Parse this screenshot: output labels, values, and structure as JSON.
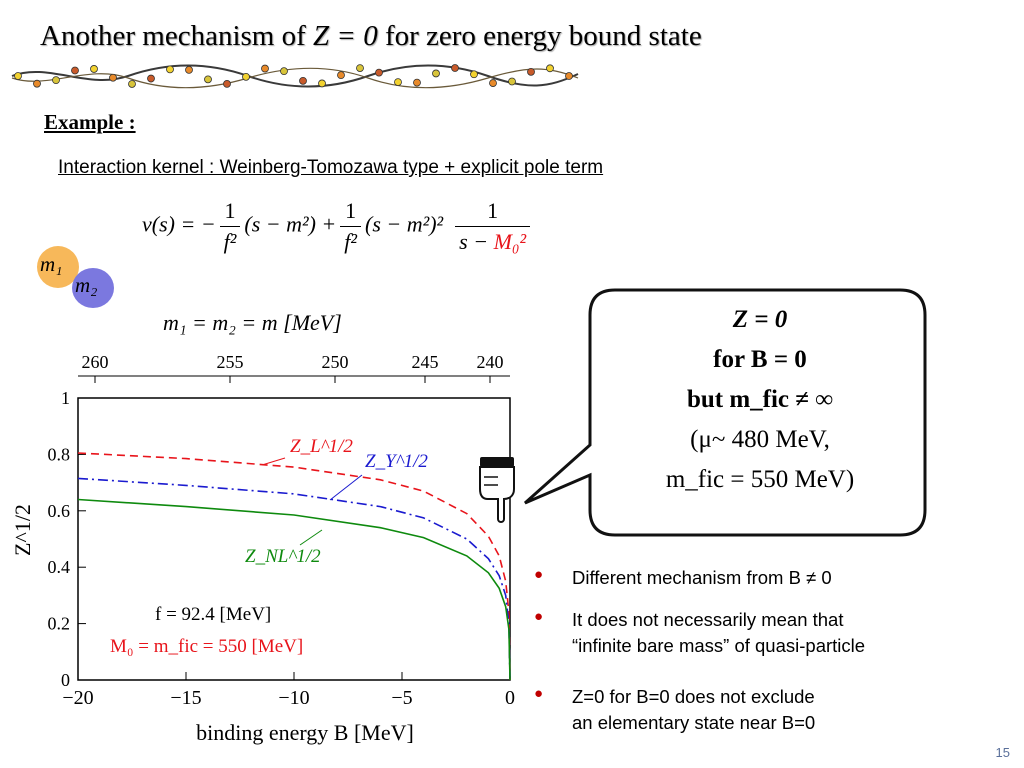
{
  "title": {
    "prefix": "Another mechanism of ",
    "math": "Z = 0",
    "suffix": " for zero energy bound state"
  },
  "example_label": "Example :",
  "kernel_text": "Interaction kernel : Weinberg-Tomozawa type + explicit pole term",
  "equation_v": {
    "lhs": "v(s) = −",
    "frac1_num": "1",
    "frac1_den": "f²",
    "mid1": "(s − m²) +",
    "frac2_num": "1",
    "frac2_den": "f²",
    "mid2": "(s − m²)²",
    "frac3_num": "1",
    "frac3_den_prefix": "s − ",
    "frac3_den_red": "M₀²"
  },
  "particles": {
    "m1": "m₁",
    "m2": "m₂"
  },
  "mass_equation": "m₁ = m₂ = m [MeV]",
  "callout": {
    "line1": "Z = 0",
    "line2": "for B = 0",
    "line3": "but m_fic ≠ ∞",
    "line4": "(μ~ 480 MeV,",
    "line5": "m_fic = 550 MeV)"
  },
  "bullets": [
    {
      "line1": "Different mechanism from B ≠ 0"
    },
    {
      "line1": "It does not necessarily mean that",
      "line2": "“infinite bare mass” of quasi-particle"
    },
    {
      "line1": "Z=0 for B=0 does not exclude",
      "line2": "an elementary state near B=0"
    }
  ],
  "page_number": "15",
  "chart_data": {
    "type": "line",
    "xlabel": "binding energy B [MeV]",
    "ylabel": "Z^1/2",
    "xlim": [
      -20,
      0
    ],
    "ylim": [
      0,
      1
    ],
    "x_ticks": [
      "−20",
      "−15",
      "−10",
      "−5",
      "0"
    ],
    "y_ticks": [
      "0",
      "0.2",
      "0.4",
      "0.6",
      "0.8",
      "1"
    ],
    "top_axis_label": "m₁ = m₂ = m [MeV]",
    "top_ticks": [
      "260",
      "255",
      "250",
      "245",
      "240"
    ],
    "annotations": [
      "f = 92.4 [MeV]",
      "M₀ = m_fic = 550 [MeV]"
    ],
    "series": [
      {
        "name": "Z_L^1/2",
        "color": "#e8141b",
        "style": "dashed",
        "x": [
          -20,
          -15,
          -10,
          -6,
          -4,
          -2,
          -1,
          -0.5,
          -0.2,
          -0.05,
          0
        ],
        "y": [
          0.805,
          0.785,
          0.755,
          0.71,
          0.67,
          0.59,
          0.51,
          0.44,
          0.35,
          0.24,
          0
        ]
      },
      {
        "name": "Z_Y^1/2",
        "color": "#1a1acf",
        "style": "dashdot",
        "x": [
          -20,
          -15,
          -10,
          -6,
          -4,
          -2,
          -1,
          -0.5,
          -0.2,
          -0.05,
          0
        ],
        "y": [
          0.715,
          0.69,
          0.66,
          0.615,
          0.575,
          0.5,
          0.43,
          0.37,
          0.3,
          0.2,
          0
        ]
      },
      {
        "name": "Z_NL^1/2",
        "color": "#0e8a0e",
        "style": "solid",
        "x": [
          -20,
          -15,
          -10,
          -6,
          -4,
          -2,
          -1,
          -0.5,
          -0.2,
          -0.05,
          0
        ],
        "y": [
          0.64,
          0.615,
          0.585,
          0.54,
          0.505,
          0.44,
          0.38,
          0.325,
          0.26,
          0.18,
          0
        ]
      }
    ]
  }
}
